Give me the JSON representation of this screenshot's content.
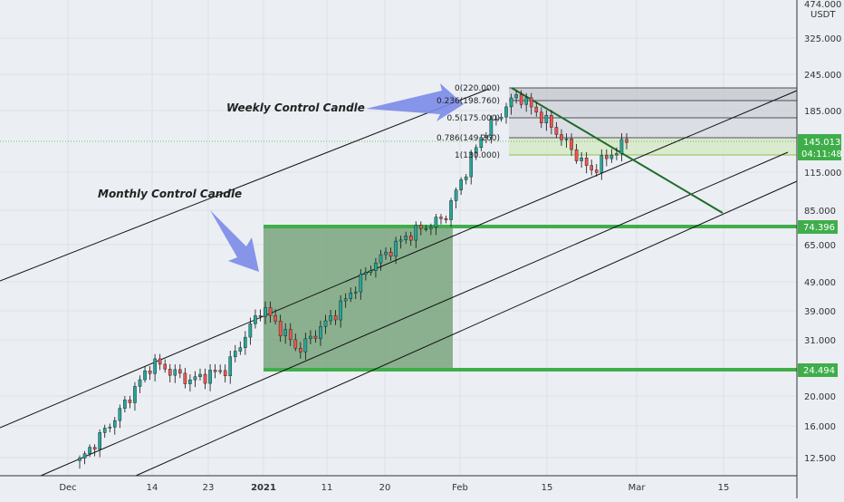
{
  "chart_data": {
    "type": "candlestick",
    "scale": "log",
    "y_axis": {
      "currency": "USDT",
      "ticks": [
        12.5,
        16,
        20,
        24.494,
        31,
        39,
        49,
        65,
        74.396,
        85,
        115,
        145.013,
        185,
        245,
        325
      ],
      "tick_labels": [
        "12.500",
        "16.000",
        "20.000",
        "24.494",
        "31.000",
        "39.000",
        "49.000",
        "65.000",
        "74.396",
        "85.000",
        "115.000",
        "145.013",
        "185.000",
        "245.000",
        "325.000"
      ],
      "top_label": "474.000",
      "range": [
        11,
        480
      ]
    },
    "x_axis": {
      "ticks": [
        "Dec",
        "14",
        "23",
        "2021",
        "11",
        "20",
        "Feb",
        "15",
        "Mar",
        "15"
      ]
    },
    "price_badges": [
      {
        "value": "145.013",
        "sub": "04:11:48",
        "color": "#3fae4a"
      },
      {
        "value": "74.396",
        "color": "#3fae4a"
      },
      {
        "value": "24.494",
        "color": "#3fae4a"
      }
    ],
    "fib_levels": [
      {
        "label": "0(220.000)",
        "price": 220
      },
      {
        "label": "0.236(198.760)",
        "price": 198.76
      },
      {
        "label": "0.5(175.000)",
        "price": 175
      },
      {
        "label": "0.786(149.260)",
        "price": 149.26
      },
      {
        "label": "1(130.000)",
        "price": 130
      }
    ],
    "annotations": {
      "weekly": "Weekly Control Candle",
      "monthly": "Monthly Control Candle"
    },
    "horizontal_levels": [
      74.396,
      24.494
    ],
    "colors": {
      "up": "#26a69a",
      "down": "#ef5350",
      "level": "#3fae4a",
      "box": "#6f9f72",
      "arrow": "#7b89e8",
      "trend": "#1f6b2a"
    },
    "candles_key_points": [
      {
        "date": "Nov 26",
        "close": 12.0
      },
      {
        "date": "Dec 14",
        "close": 17.0
      },
      {
        "date": "Dec 19",
        "close": 26.0
      },
      {
        "date": "Dec 23",
        "close": 22.5
      },
      {
        "date": "Jan 1",
        "close": 24.5
      },
      {
        "date": "Jan 8",
        "close": 40.0
      },
      {
        "date": "Jan 11",
        "close": 28.5
      },
      {
        "date": "Jan 20",
        "close": 38.0
      },
      {
        "date": "Jan 27",
        "close": 55.0
      },
      {
        "date": "Jan 31",
        "close": 70.0
      },
      {
        "date": "Feb 4",
        "close": 80.0
      },
      {
        "date": "Feb 7",
        "close": 150.0
      },
      {
        "date": "Feb 9",
        "close": 210.0
      },
      {
        "date": "Feb 15",
        "close": 160.0
      },
      {
        "date": "Feb 22",
        "close": 115.0
      },
      {
        "date": "Feb 27",
        "close": 145.0
      }
    ]
  }
}
